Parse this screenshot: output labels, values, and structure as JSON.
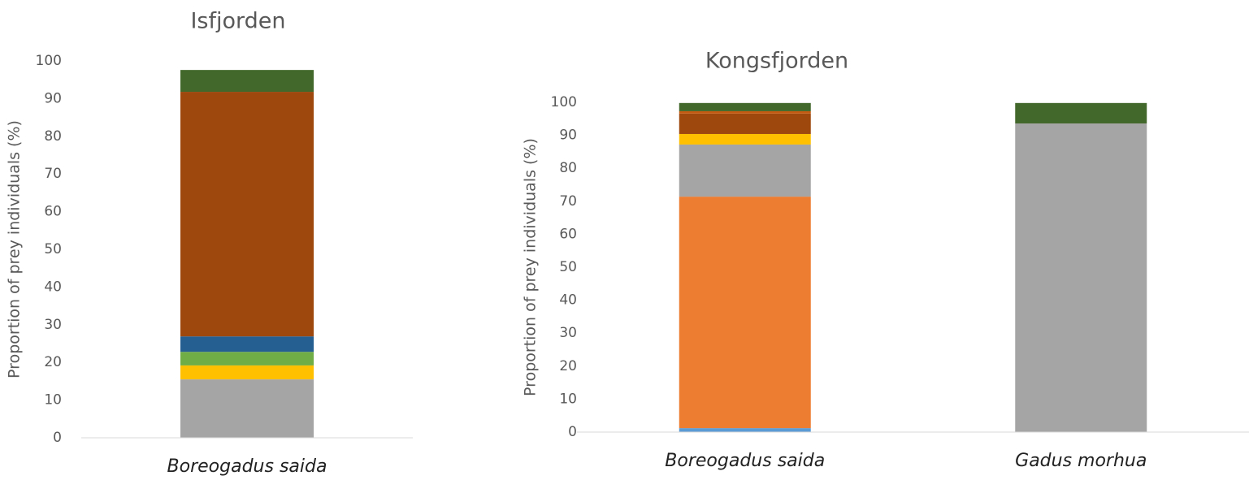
{
  "chart_data": [
    {
      "type": "bar",
      "stacked": true,
      "title": "Isfjorden",
      "y_label": "Proportion of prey individuals (%)",
      "categories": [
        "Boreogadus saida"
      ],
      "series": [
        {
          "color": "#a5a5a5",
          "values": [
            15.5
          ]
        },
        {
          "color": "#ffc000",
          "values": [
            3.7
          ]
        },
        {
          "color": "#70ad47",
          "values": [
            3.6
          ]
        },
        {
          "color": "#255e91",
          "values": [
            4.1
          ]
        },
        {
          "color": "#9e480e",
          "values": [
            64.9
          ]
        },
        {
          "color": "#43682b",
          "values": [
            5.8
          ]
        }
      ],
      "ylim": [
        0,
        100
      ],
      "yticks": [
        0,
        10,
        20,
        30,
        40,
        50,
        60,
        70,
        80,
        90,
        100
      ],
      "grid": false
    },
    {
      "type": "bar",
      "stacked": true,
      "title": "Kongsfjorden",
      "y_label": "Proportion of prey individuals (%)",
      "categories": [
        "Boreogadus saida",
        "Gadus morhua"
      ],
      "series": [
        {
          "color": "#5b9bd5",
          "values": [
            1.2,
            0
          ]
        },
        {
          "color": "#ed7d31",
          "values": [
            70.2,
            0
          ]
        },
        {
          "color": "#a5a5a5",
          "values": [
            15.8,
            93.6
          ]
        },
        {
          "color": "#ffc000",
          "values": [
            3.2,
            0
          ]
        },
        {
          "color": "#9e480e",
          "values": [
            6.2,
            0
          ]
        },
        {
          "color": "#c55a11",
          "values": [
            0.7,
            0
          ]
        },
        {
          "color": "#43682b",
          "values": [
            2.5,
            6.2
          ]
        }
      ],
      "ylim": [
        0,
        100
      ],
      "yticks": [
        0,
        10,
        20,
        30,
        40,
        50,
        60,
        70,
        80,
        90,
        100
      ],
      "grid": false
    }
  ]
}
